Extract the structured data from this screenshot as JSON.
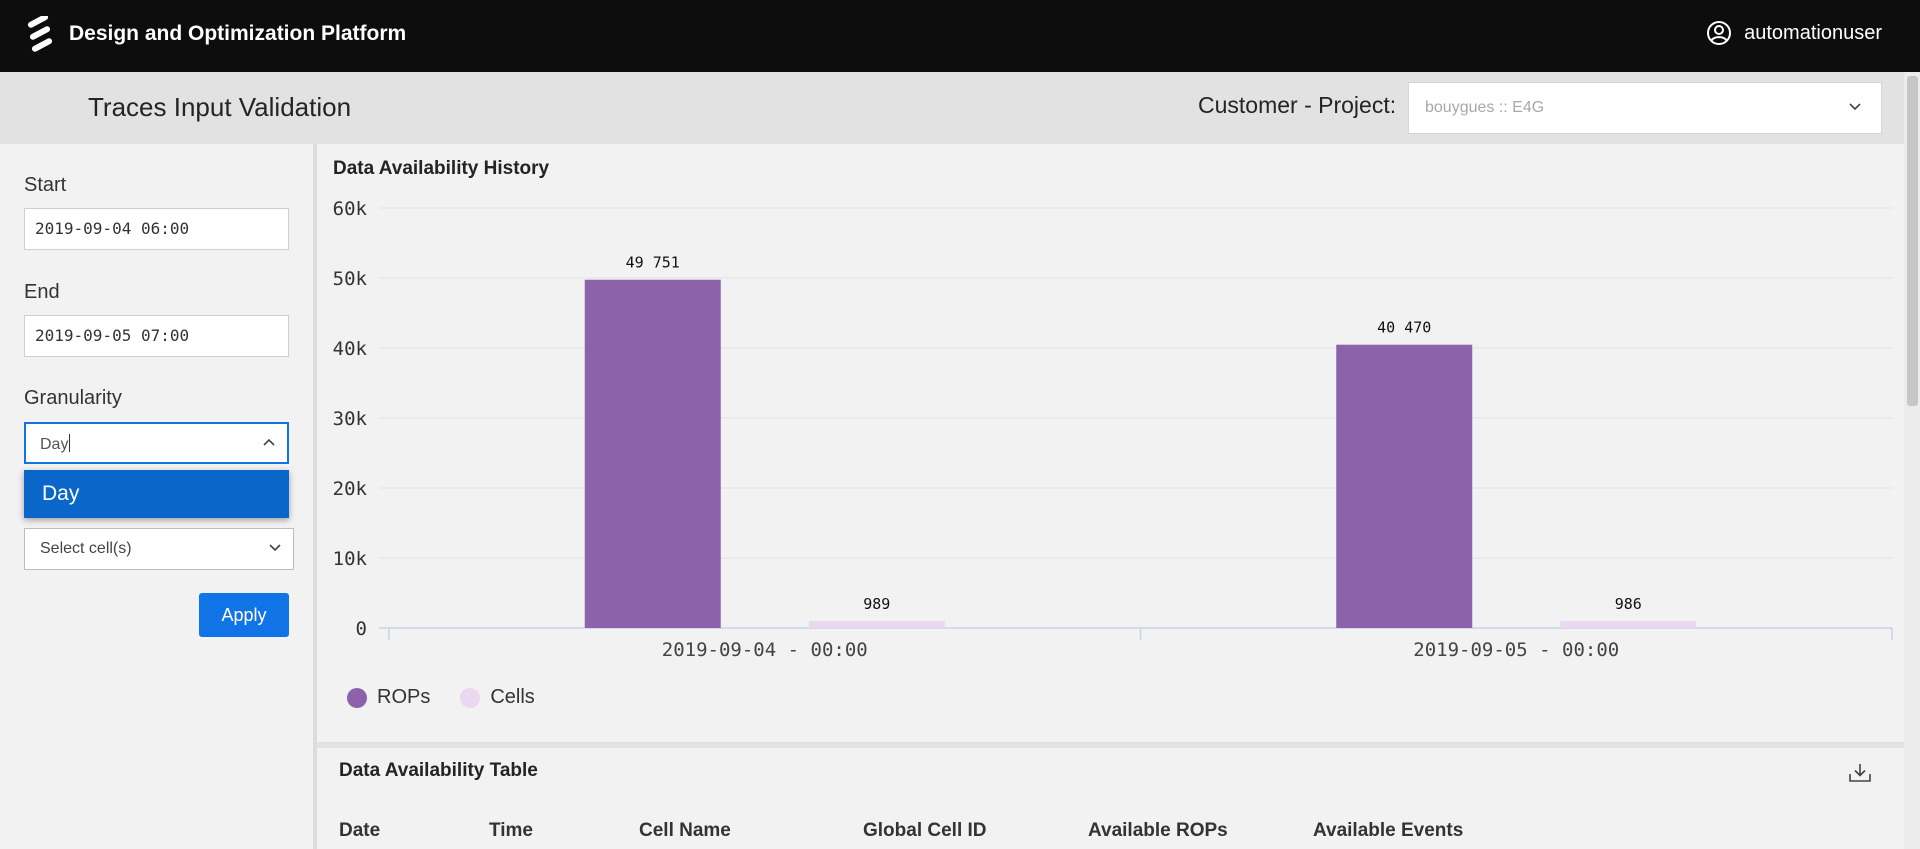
{
  "topbar": {
    "app_title": "Design and Optimization Platform",
    "username": "automationuser",
    "logo_icon": "ericsson-logo",
    "user_icon": "user-circle-icon"
  },
  "header": {
    "page_title": "Traces Input Validation",
    "customer_project_label": "Customer - Project:",
    "customer_project_value": "bouygues :: E4G"
  },
  "sidebar": {
    "start_label": "Start",
    "start_value": "2019-09-04 06:00",
    "end_label": "End",
    "end_value": "2019-09-05 07:00",
    "granularity_label": "Granularity",
    "granularity_value": "Day",
    "granularity_options": [
      "Day"
    ],
    "cells_placeholder": "Select cell(s)",
    "apply_label": "Apply"
  },
  "chart_card": {
    "title": "Data Availability History"
  },
  "chart_data": {
    "type": "bar",
    "title": "Data Availability History",
    "categories": [
      "2019-09-04 - 00:00",
      "2019-09-05 - 00:00"
    ],
    "series": [
      {
        "name": "ROPs",
        "values": [
          49751,
          40470
        ],
        "labels": [
          "49 751",
          "40 470"
        ],
        "color": "#8c62aa"
      },
      {
        "name": "Cells",
        "values": [
          989,
          986
        ],
        "labels": [
          "989",
          "986"
        ],
        "color": "#ead7f0"
      }
    ],
    "yticks": [
      "60k",
      "50k",
      "40k",
      "30k",
      "20k",
      "10k",
      "0"
    ],
    "ytick_values": [
      60000,
      50000,
      40000,
      30000,
      20000,
      10000,
      0
    ],
    "ylim": [
      0,
      60000
    ],
    "grid": true,
    "legend": "bottom-left",
    "xlabel": "",
    "ylabel": ""
  },
  "table_card": {
    "title": "Data Availability Table",
    "download_icon": "download-icon",
    "columns": [
      "Date",
      "Time",
      "Cell Name",
      "Global Cell ID",
      "Available ROPs",
      "Available Events"
    ]
  },
  "colors": {
    "topbar": "#0d0d0d",
    "accent": "#1174e6",
    "rops": "#8c62aa",
    "cells": "#ead7f0"
  }
}
